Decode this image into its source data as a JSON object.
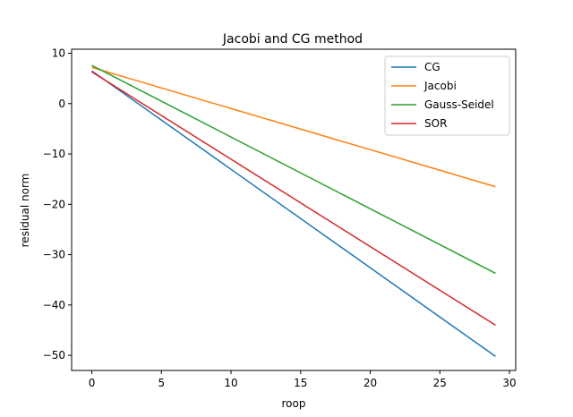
{
  "chart_data": {
    "type": "line",
    "title": "Jacobi and CG method",
    "xlabel": "roop",
    "ylabel": "residual norm",
    "xlim": [
      -1.45,
      30.45
    ],
    "ylim": [
      -53,
      10.8
    ],
    "xticks": [
      0,
      5,
      10,
      15,
      20,
      25,
      30
    ],
    "yticks": [
      10,
      0,
      -10,
      -20,
      -30,
      -40,
      -50
    ],
    "grid": false,
    "legend_position": "top-right",
    "series": [
      {
        "name": "CG",
        "color": "#1f77b4",
        "x": [
          0,
          29
        ],
        "y": [
          6.5,
          -50.2
        ]
      },
      {
        "name": "Jacobi",
        "color": "#ff7f0e",
        "x": [
          0,
          29
        ],
        "y": [
          7.2,
          -16.5
        ]
      },
      {
        "name": "Gauss-Seidel",
        "color": "#2ca02c",
        "x": [
          0,
          29
        ],
        "y": [
          7.6,
          -33.7
        ]
      },
      {
        "name": "SOR",
        "color": "#d62728",
        "x": [
          0,
          29
        ],
        "y": [
          6.3,
          -44.0
        ]
      }
    ]
  }
}
